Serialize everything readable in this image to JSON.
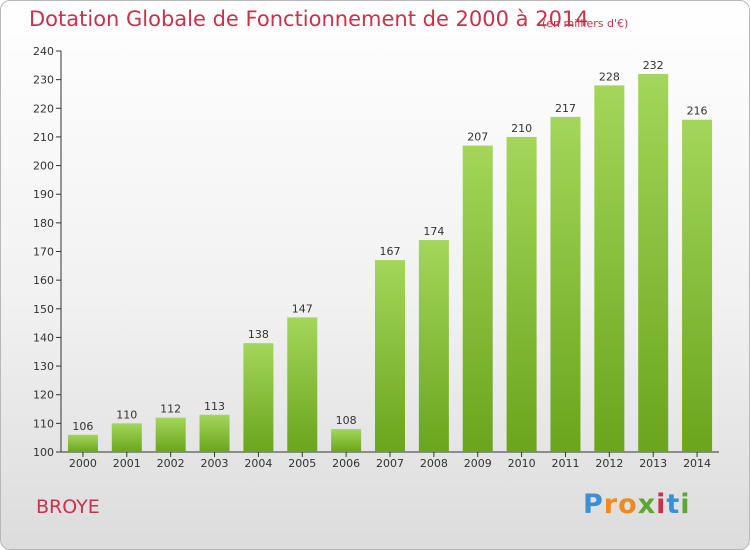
{
  "header": {
    "title": "Dotation Globale de Fonctionnement de 2000 à 2014",
    "unit_note": "(en milliers d'€)"
  },
  "footer": {
    "commune": "BROYE",
    "brand": "Proxiti"
  },
  "colors": {
    "title": "#c8324b",
    "bar_light": "#a3d65a",
    "bar_dark": "#6aa51d",
    "axis": "#333333"
  },
  "chart_data": {
    "type": "bar",
    "categories": [
      "2000",
      "2001",
      "2002",
      "2003",
      "2004",
      "2005",
      "2006",
      "2007",
      "2008",
      "2009",
      "2010",
      "2011",
      "2012",
      "2013",
      "2014"
    ],
    "values": [
      106,
      110,
      112,
      113,
      138,
      147,
      108,
      167,
      174,
      207,
      210,
      217,
      228,
      232,
      216
    ],
    "ylim": [
      100,
      240
    ],
    "yticks": [
      100,
      110,
      120,
      130,
      140,
      150,
      160,
      170,
      180,
      190,
      200,
      210,
      220,
      230,
      240
    ],
    "grid": false,
    "legend": "none"
  }
}
